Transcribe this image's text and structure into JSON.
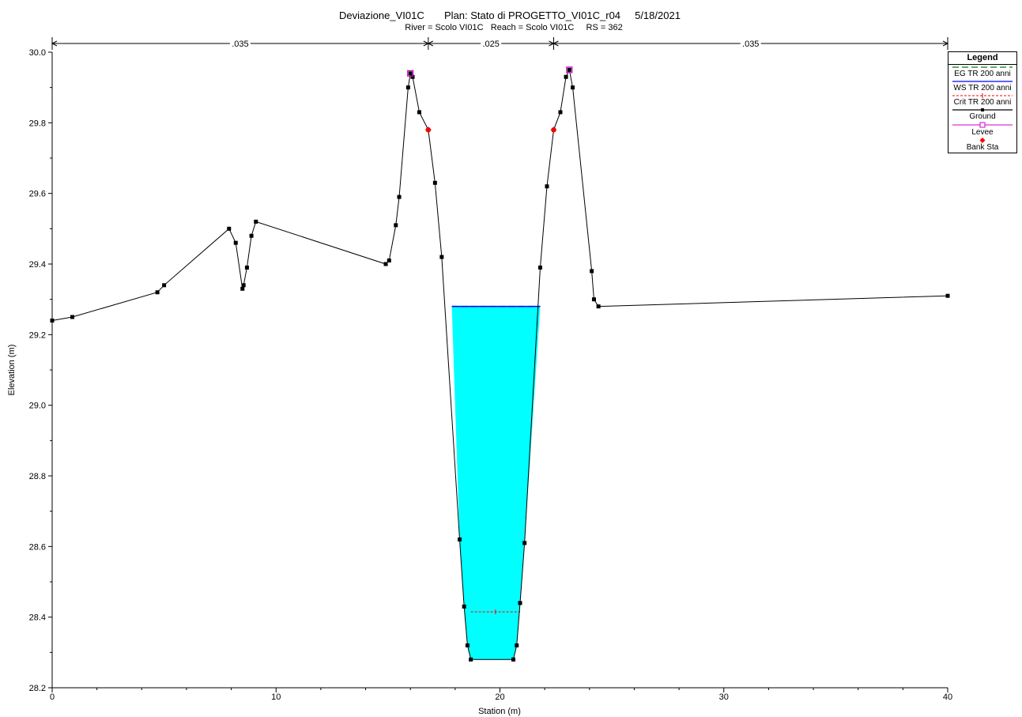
{
  "chart_data": {
    "type": "line",
    "title": "Deviazione_VI01C       Plan: Stato di PROGETTO_VI01C_r04     5/18/2021",
    "subtitle": "River = Scolo VI01C   Reach = Scolo VI01C     RS = 362",
    "xlabel": "Station (m)",
    "ylabel": "Elevation (m)",
    "xlim": [
      0,
      40
    ],
    "ylim": [
      28.2,
      30.0
    ],
    "x_ticks": [
      "0",
      "10",
      "20",
      "30",
      "40"
    ],
    "y_ticks": [
      "28.2",
      "28.4",
      "28.6",
      "28.8",
      "29.0",
      "29.2",
      "29.4",
      "29.6",
      "29.8",
      "30.0"
    ],
    "grid": false,
    "legend_position": "right",
    "legend_title": "Legend",
    "colors": {
      "ground": "#000000",
      "water_fill": "#00ffff",
      "ws_line": "#0000ff",
      "crit": "#ff0000",
      "eg": "#008000",
      "levee": "#cc00cc",
      "bank": "#ff0000"
    },
    "ground": {
      "name": "Ground",
      "x": [
        0,
        0.9,
        4.7,
        5.0,
        7.9,
        8.2,
        8.5,
        8.55,
        8.7,
        8.9,
        9.1,
        14.9,
        15.05,
        15.35,
        15.5,
        15.9,
        16.0,
        16.1,
        16.4,
        16.8,
        17.1,
        17.4,
        18.2,
        18.4,
        18.55,
        18.7,
        20.6,
        20.75,
        20.9,
        21.1,
        21.8,
        22.1,
        22.4,
        22.7,
        22.95,
        23.1,
        23.25,
        24.1,
        24.2,
        24.4,
        40.0
      ],
      "y": [
        29.24,
        29.25,
        29.32,
        29.34,
        29.5,
        29.46,
        29.33,
        29.34,
        29.39,
        29.48,
        29.52,
        29.4,
        29.41,
        29.51,
        29.59,
        29.9,
        29.94,
        29.93,
        29.83,
        29.78,
        29.63,
        29.42,
        28.62,
        28.43,
        28.32,
        28.28,
        28.28,
        28.32,
        28.44,
        28.61,
        29.39,
        29.62,
        29.78,
        29.83,
        29.93,
        29.95,
        29.9,
        29.38,
        29.3,
        29.28,
        29.31
      ]
    },
    "series": [
      {
        "name": "EG TR 200 anni",
        "x": [
          17.85,
          21.8
        ],
        "y": [
          29.28,
          29.28
        ]
      },
      {
        "name": "WS TR 200 anni",
        "x": [
          17.85,
          21.8
        ],
        "y": [
          29.28,
          29.28
        ]
      },
      {
        "name": "Crit TR 200 anni",
        "x": [
          18.7,
          20.9
        ],
        "y": [
          28.415,
          28.415
        ]
      }
    ],
    "levees": {
      "name": "Levee",
      "x": [
        16.0,
        23.1
      ],
      "y": [
        29.94,
        29.95
      ]
    },
    "bank_stations": {
      "name": "Bank Sta",
      "x": [
        16.8,
        22.4
      ],
      "y": [
        29.78,
        29.78
      ]
    },
    "manning_n": [
      {
        "label": ".035",
        "x_start": 0,
        "x_end": 16.8
      },
      {
        "label": ".025",
        "x_start": 16.8,
        "x_end": 22.4
      },
      {
        "label": ".035",
        "x_start": 22.4,
        "x_end": 40.0
      }
    ],
    "legend_entries": [
      "EG TR 200 anni",
      "WS TR 200 anni",
      "Crit TR 200 anni",
      "Ground",
      "Levee",
      "Bank Sta"
    ]
  }
}
